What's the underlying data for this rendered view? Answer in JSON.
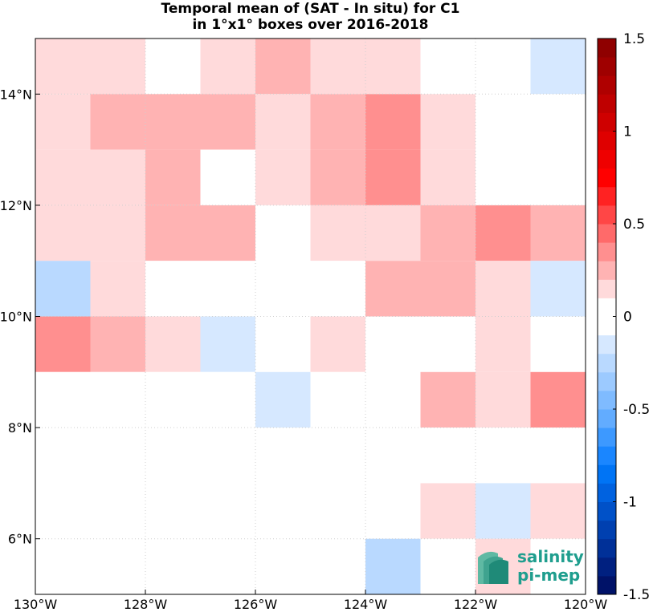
{
  "chart_data": {
    "type": "heatmap",
    "title": [
      "Temporal mean of (SAT - In situ) for C1",
      "in 1°x1° boxes over 2016-2018"
    ],
    "xlim": [
      -130,
      -120
    ],
    "ylim": [
      5,
      15
    ],
    "x_ticks": [
      {
        "value": -130,
        "label": "130°W"
      },
      {
        "value": -128,
        "label": "128°W"
      },
      {
        "value": -126,
        "label": "126°W"
      },
      {
        "value": -124,
        "label": "124°W"
      },
      {
        "value": -122,
        "label": "122°W"
      },
      {
        "value": -120,
        "label": "120°W"
      }
    ],
    "y_ticks": [
      {
        "value": 6,
        "label": "6°N"
      },
      {
        "value": 8,
        "label": "8°N"
      },
      {
        "value": 10,
        "label": "10°N"
      },
      {
        "value": 12,
        "label": "12°N"
      },
      {
        "value": 14,
        "label": "14°N"
      }
    ],
    "grid": true,
    "x_centers": [
      -129.5,
      -128.5,
      -127.5,
      -126.5,
      -125.5,
      -124.5,
      -123.5,
      -122.5,
      -121.5,
      -120.5
    ],
    "y_centers": [
      14.5,
      13.5,
      12.5,
      11.5,
      10.5,
      9.5,
      8.5,
      7.5,
      6.5,
      5.5
    ],
    "values": [
      [
        0.15,
        0.15,
        0.0,
        0.15,
        0.25,
        0.15,
        0.15,
        0.0,
        0.0,
        -0.1
      ],
      [
        0.15,
        0.25,
        0.25,
        0.25,
        0.15,
        0.25,
        0.35,
        0.15,
        0.0,
        0.0
      ],
      [
        0.15,
        0.15,
        0.25,
        0.0,
        0.15,
        0.25,
        0.35,
        0.15,
        0.0,
        0.0
      ],
      [
        0.15,
        0.15,
        0.25,
        0.25,
        0.0,
        0.15,
        0.15,
        0.25,
        0.35,
        0.25
      ],
      [
        -0.2,
        0.15,
        0.0,
        0.0,
        0.0,
        0.0,
        0.25,
        0.25,
        0.15,
        -0.1
      ],
      [
        0.35,
        0.25,
        0.15,
        -0.1,
        0.0,
        0.15,
        0.0,
        0.0,
        0.15,
        0.0
      ],
      [
        0.0,
        0.0,
        0.0,
        0.0,
        -0.1,
        0.0,
        0.0,
        0.25,
        0.15,
        0.35
      ],
      [
        0.0,
        0.0,
        0.0,
        0.0,
        0.0,
        0.0,
        0.0,
        0.0,
        0.0,
        0.0
      ],
      [
        0.0,
        0.0,
        0.0,
        0.0,
        0.0,
        0.0,
        0.0,
        0.15,
        -0.1,
        0.15
      ],
      [
        0.0,
        0.0,
        0.0,
        0.0,
        0.0,
        0.0,
        -0.2,
        0.0,
        0.15,
        0.0
      ]
    ],
    "colorbar": {
      "range": [
        -1.5,
        1.5
      ],
      "step": 0.1,
      "ticks": [
        {
          "value": 1.5,
          "label": "1.5"
        },
        {
          "value": 1.0,
          "label": "1"
        },
        {
          "value": 0.5,
          "label": "0.5"
        },
        {
          "value": 0.0,
          "label": "0"
        },
        {
          "value": -0.5,
          "label": "-0.5"
        },
        {
          "value": -1.0,
          "label": "-1"
        },
        {
          "value": -1.5,
          "label": "-1.5"
        }
      ]
    },
    "colormap": {
      "positive": [
        "#ffffff",
        "#ffdadb",
        "#ffb3b3",
        "#ff8f8f",
        "#ff6a6a",
        "#ff4646",
        "#ff2222",
        "#ff0000",
        "#ef0000",
        "#df0000",
        "#cf0000",
        "#bf0000",
        "#af0000",
        "#9f0000",
        "#8f0000",
        "#7a0000"
      ],
      "negative": [
        "#ffffff",
        "#d6e8ff",
        "#b9d9ff",
        "#9ccaff",
        "#7fbbff",
        "#62acff",
        "#3d99ff",
        "#1a86ff",
        "#0074f5",
        "#0062e0",
        "#0051c8",
        "#0040b0",
        "#003098",
        "#002080",
        "#001268",
        "#000550"
      ]
    }
  },
  "logo": {
    "line1": "salinity",
    "line2": "pi-mep",
    "color": "#1f9e8e"
  }
}
